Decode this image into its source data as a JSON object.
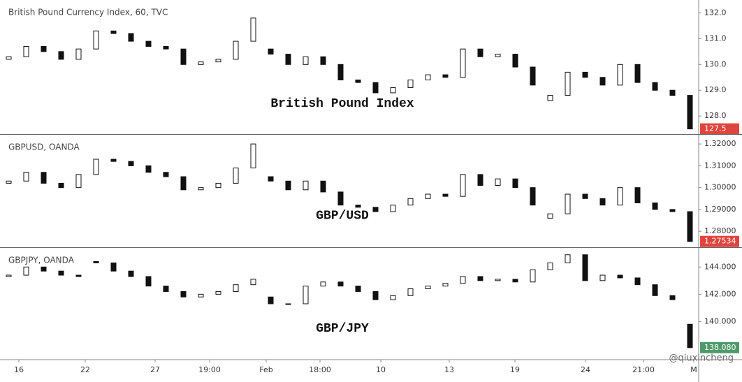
{
  "watermark": "@qiuxincheng",
  "chart_data": [
    {
      "type": "candlestick",
      "title": "British Pound Currency Index, 60, TVC",
      "annotation": "British Pound Index",
      "series": [
        {
          "open": [
            130.2,
            130.3,
            130.7,
            130.5,
            130.2,
            130.6,
            131.3,
            131.2,
            130.9,
            130.7,
            130.6,
            130.0,
            130.1,
            130.2,
            130.9,
            130.6,
            130.4,
            130.0,
            130.3,
            130.0,
            129.4,
            129.3,
            128.9,
            129.1,
            129.4,
            129.6,
            129.5,
            130.6,
            130.3,
            130.4,
            129.9,
            128.6,
            128.8,
            129.7,
            129.5,
            129.2,
            130.0,
            129.3,
            129.0,
            128.8
          ],
          "close": [
            130.3,
            130.7,
            130.5,
            130.2,
            130.6,
            131.3,
            131.2,
            130.9,
            130.7,
            130.6,
            130.0,
            130.1,
            130.2,
            130.9,
            131.8,
            130.4,
            130.0,
            130.3,
            130.0,
            129.4,
            129.3,
            128.9,
            129.1,
            129.4,
            129.6,
            129.5,
            130.6,
            130.3,
            130.4,
            129.9,
            129.2,
            128.8,
            129.7,
            129.5,
            129.2,
            130.0,
            129.3,
            129.0,
            128.8,
            127.5
          ]
        }
      ],
      "xlim": [
        0,
        40
      ],
      "ylim": [
        127.3,
        132.5
      ],
      "yticks": [
        {
          "value": 132,
          "label": "132.0"
        },
        {
          "value": 131,
          "label": "131.0"
        },
        {
          "value": 130,
          "label": "130.0"
        },
        {
          "value": 129,
          "label": "129.0"
        },
        {
          "value": 128,
          "label": "128.0"
        }
      ],
      "last_price": 127.5,
      "last_price_color": "#e0443e"
    },
    {
      "type": "candlestick",
      "title": "GBPUSD, OANDA",
      "annotation": "GBP/USD",
      "series": [
        {
          "open": [
            1.302,
            1.303,
            1.307,
            1.302,
            1.3,
            1.306,
            1.313,
            1.312,
            1.31,
            1.307,
            1.305,
            1.299,
            1.3,
            1.302,
            1.309,
            1.305,
            1.303,
            1.299,
            1.303,
            1.298,
            1.292,
            1.291,
            1.289,
            1.292,
            1.295,
            1.297,
            1.296,
            1.306,
            1.301,
            1.304,
            1.3,
            1.286,
            1.288,
            1.297,
            1.295,
            1.292,
            1.3,
            1.293,
            1.29,
            1.289
          ],
          "close": [
            1.303,
            1.307,
            1.302,
            1.3,
            1.306,
            1.313,
            1.312,
            1.31,
            1.307,
            1.305,
            1.299,
            1.3,
            1.302,
            1.309,
            1.32,
            1.303,
            1.299,
            1.303,
            1.298,
            1.292,
            1.291,
            1.289,
            1.292,
            1.295,
            1.297,
            1.296,
            1.306,
            1.301,
            1.304,
            1.3,
            1.292,
            1.288,
            1.297,
            1.295,
            1.292,
            1.3,
            1.293,
            1.29,
            1.289,
            1.27534
          ]
        }
      ],
      "xlim": [
        0,
        40
      ],
      "ylim": [
        1.2727,
        1.3242
      ],
      "yticks": [
        {
          "value": 1.32,
          "label": "1.32000"
        },
        {
          "value": 1.31,
          "label": "1.31000"
        },
        {
          "value": 1.3,
          "label": "1.30000"
        },
        {
          "value": 1.29,
          "label": "1.29000"
        },
        {
          "value": 1.28,
          "label": "1.28000"
        }
      ],
      "last_price": 1.27534,
      "last_price_color": "#e0443e"
    },
    {
      "type": "candlestick",
      "title": "GBPJPY, OANDA",
      "annotation": "GBP/JPY",
      "series": [
        {
          "open": [
            143.3,
            143.4,
            144.0,
            143.7,
            143.4,
            144.4,
            144.3,
            143.7,
            143.3,
            142.6,
            142.2,
            141.8,
            142.0,
            142.2,
            142.7,
            141.8,
            141.3,
            141.3,
            142.6,
            142.9,
            142.6,
            142.2,
            141.6,
            141.9,
            142.4,
            142.6,
            142.8,
            143.3,
            143.0,
            143.1,
            142.9,
            143.8,
            144.3,
            144.9,
            143.0,
            143.4,
            143.2,
            142.7,
            141.9,
            139.8
          ],
          "close": [
            143.4,
            144.0,
            143.7,
            143.4,
            143.3,
            144.3,
            143.7,
            143.3,
            142.6,
            142.2,
            141.8,
            142.0,
            142.2,
            142.7,
            143.1,
            141.3,
            141.3,
            142.6,
            142.9,
            142.6,
            142.2,
            141.6,
            141.9,
            142.4,
            142.6,
            142.8,
            143.3,
            143.0,
            143.1,
            142.9,
            143.8,
            144.3,
            144.9,
            143.0,
            143.4,
            143.2,
            142.7,
            141.9,
            141.6,
            138.08
          ]
        }
      ],
      "xlim": [
        0,
        40
      ],
      "ylim": [
        137.2,
        145.4
      ],
      "yticks": [
        {
          "value": 144,
          "label": "144.000"
        },
        {
          "value": 142,
          "label": "142.000"
        },
        {
          "value": 140,
          "label": "140.000"
        }
      ],
      "last_price": {
        "value": 138.08,
        "label": "138.080"
      },
      "last_price_color": "#4f9a6b",
      "xticks": [
        {
          "value": 1.08,
          "label": "16"
        },
        {
          "value": 4.88,
          "label": "22"
        },
        {
          "value": 8.88,
          "label": "27"
        },
        {
          "value": 12,
          "label": "19:00"
        },
        {
          "value": 15.24,
          "label": "Feb"
        },
        {
          "value": 18.32,
          "label": "18:00"
        },
        {
          "value": 21.8,
          "label": "10"
        },
        {
          "value": 25.72,
          "label": "13"
        },
        {
          "value": 29.48,
          "label": "19"
        },
        {
          "value": 33.52,
          "label": "24"
        },
        {
          "value": 36.84,
          "label": "21:00"
        },
        {
          "value": 39.72,
          "label": "M"
        }
      ]
    }
  ]
}
